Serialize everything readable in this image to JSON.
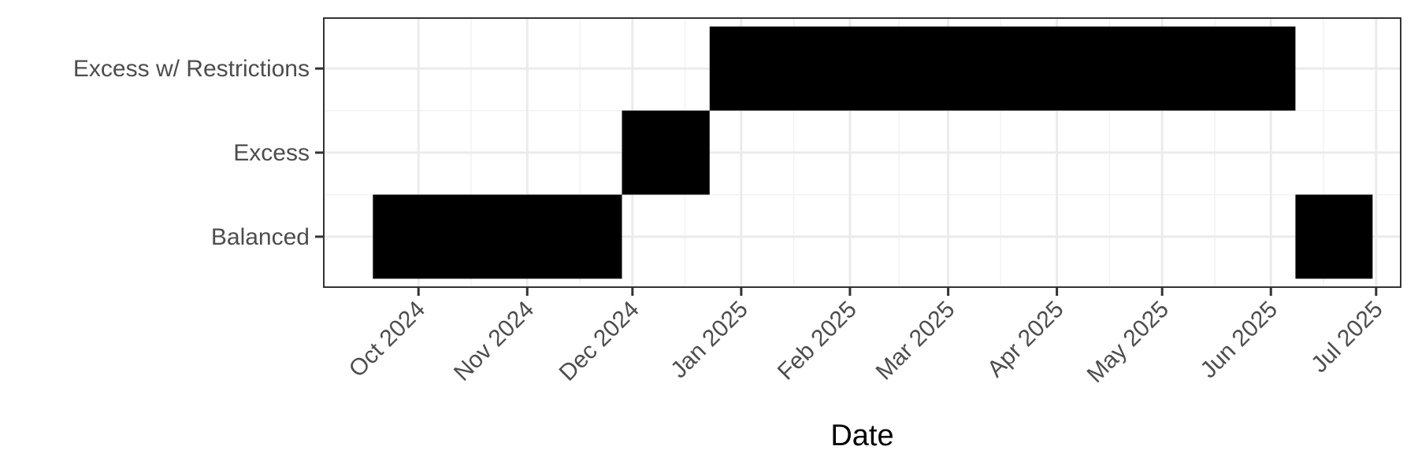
{
  "chart_data": {
    "type": "timeline",
    "xlabel": "Date",
    "ylabel": "",
    "categories": [
      "Balanced",
      "Excess",
      "Excess w/ Restrictions"
    ],
    "x_ticks": [
      {
        "date": "2024-10-01",
        "label": "Oct 2024"
      },
      {
        "date": "2024-11-01",
        "label": "Nov 2024"
      },
      {
        "date": "2024-12-01",
        "label": "Dec 2024"
      },
      {
        "date": "2025-01-01",
        "label": "Jan 2025"
      },
      {
        "date": "2025-02-01",
        "label": "Feb 2025"
      },
      {
        "date": "2025-03-01",
        "label": "Mar 2025"
      },
      {
        "date": "2025-04-01",
        "label": "Apr 2025"
      },
      {
        "date": "2025-05-01",
        "label": "May 2025"
      },
      {
        "date": "2025-06-01",
        "label": "Jun 2025"
      },
      {
        "date": "2025-07-01",
        "label": "Jul 2025"
      }
    ],
    "xlim": [
      "2024-09-04",
      "2025-07-08"
    ],
    "segments": [
      {
        "category": "Balanced",
        "start": "2024-09-18",
        "end": "2024-11-28"
      },
      {
        "category": "Excess",
        "start": "2024-11-28",
        "end": "2024-12-23"
      },
      {
        "category": "Excess w/ Restrictions",
        "start": "2024-12-23",
        "end": "2025-06-08"
      },
      {
        "category": "Balanced",
        "start": "2025-06-08",
        "end": "2025-06-30"
      }
    ],
    "bar_color": "#000000",
    "grid": true,
    "legend": "none"
  }
}
